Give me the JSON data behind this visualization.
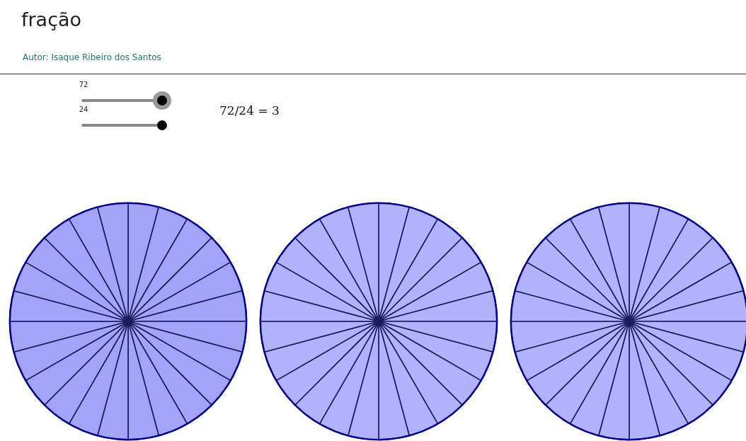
{
  "chart_data": [
    {
      "type": "other",
      "title": "fração",
      "subtitle": "Autor: Isaque Ribeiro dos Santos",
      "annotations": [
        "72",
        "24",
        "72/24 = 3"
      ]
    },
    {
      "type": "pie",
      "categories": [
        null,
        null,
        null,
        null,
        null,
        null,
        null,
        null,
        null,
        null,
        null,
        null,
        null,
        null,
        null,
        null,
        null,
        null,
        null,
        null,
        null,
        null,
        null,
        null
      ],
      "values": [
        4.1667,
        4.1667,
        4.1667,
        4.1667,
        4.1667,
        4.1667,
        4.1667,
        4.1667,
        4.1667,
        4.1667,
        4.1667,
        4.1667,
        4.1667,
        4.1667,
        4.1667,
        4.1667,
        4.1667,
        4.1667,
        4.1667,
        4.1667,
        4.1667,
        4.1667,
        4.1667,
        4.1667
      ],
      "colors": [
        "#a3a3fa",
        "#a3a3fa",
        "#a3a3fa",
        "#a3a3fa",
        "#a3a3fa",
        "#a3a3fa",
        "#a3a3fa",
        "#a3a3fa",
        "#a3a3fa",
        "#a3a3fa",
        "#a3a3fa",
        "#a3a3fa",
        "#a3a3fa",
        "#a3a3fa",
        "#a3a3fa",
        "#a3a3fa",
        "#a3a3fa",
        "#a3a3fa",
        "#a3a3fa",
        "#a3a3fa",
        "#a3a3fa",
        "#a3a3fa",
        "#a3a3fa",
        "#a3a3fa"
      ]
    },
    {
      "type": "pie",
      "categories": [
        null,
        null,
        null,
        null,
        null,
        null,
        null,
        null,
        null,
        null,
        null,
        null,
        null,
        null,
        null,
        null,
        null,
        null,
        null,
        null,
        null,
        null,
        null,
        null
      ],
      "values": [
        4.1667,
        4.1667,
        4.1667,
        4.1667,
        4.1667,
        4.1667,
        4.1667,
        4.1667,
        4.1667,
        4.1667,
        4.1667,
        4.1667,
        4.1667,
        4.1667,
        4.1667,
        4.1667,
        4.1667,
        4.1667,
        4.1667,
        4.1667,
        4.1667,
        4.1667,
        4.1667,
        4.1667
      ],
      "colors": [
        "#b1b1fc",
        "#b1b1fc",
        "#b1b1fc",
        "#b1b1fc",
        "#b1b1fc",
        "#b1b1fc",
        "#b1b1fc",
        "#b1b1fc",
        "#b1b1fc",
        "#b1b1fc",
        "#b1b1fc",
        "#b1b1fc",
        "#b1b1fc",
        "#b1b1fc",
        "#b1b1fc",
        "#b1b1fc",
        "#b1b1fc",
        "#b1b1fc",
        "#b1b1fc",
        "#b1b1fc",
        "#b1b1fc",
        "#b1b1fc",
        "#b1b1fc",
        "#b1b1fc"
      ]
    },
    {
      "type": "pie",
      "categories": [
        null,
        null,
        null,
        null,
        null,
        null,
        null,
        null,
        null,
        null,
        null,
        null,
        null,
        null,
        null,
        null,
        null,
        null,
        null,
        null,
        null,
        null,
        null,
        null
      ],
      "values": [
        4.1667,
        4.1667,
        4.1667,
        4.1667,
        4.1667,
        4.1667,
        4.1667,
        4.1667,
        4.1667,
        4.1667,
        4.1667,
        4.1667,
        4.1667,
        4.1667,
        4.1667,
        4.1667,
        4.1667,
        4.1667,
        4.1667,
        4.1667,
        4.1667,
        4.1667,
        4.1667,
        4.1667
      ],
      "colors": [
        "#b1b1fc",
        "#b1b1fc",
        "#b1b1fc",
        "#b1b1fc",
        "#b1b1fc",
        "#b1b1fc",
        "#b1b1fc",
        "#b1b1fc",
        "#b1b1fc",
        "#b1b1fc",
        "#b1b1fc",
        "#b1b1fc",
        "#b1b1fc",
        "#b1b1fc",
        "#b1b1fc",
        "#b1b1fc",
        "#b1b1fc",
        "#b1b1fc",
        "#b1b1fc",
        "#b1b1fc",
        "#b1b1fc",
        "#b1b1fc",
        "#b1b1fc",
        "#b1b1fc"
      ]
    }
  ]
}
